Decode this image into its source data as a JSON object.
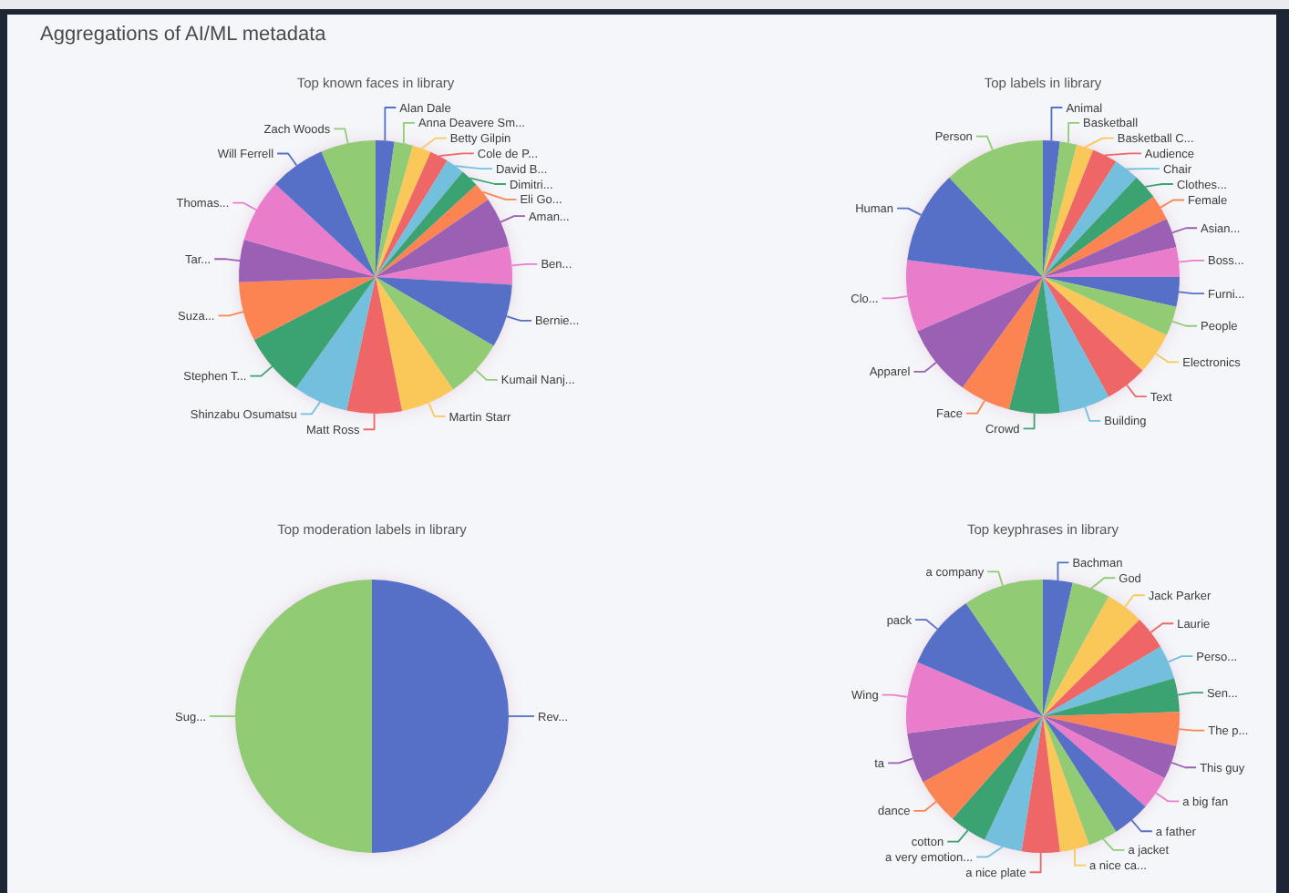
{
  "chart_data": [
    {
      "type": "other",
      "title": "Aggregations of AI/ML metadata"
    },
    {
      "type": "pie",
      "title": "Top known faces in library",
      "categories": [
        "Alan Dale",
        "Anna Deavere Sm...",
        "Betty Gilpin",
        "Cole de P...",
        "David B...",
        "Dimitri...",
        "Eli Go...",
        "Aman...",
        "Ben...",
        "Bernie...",
        "Kumail Nanj...",
        "Martin Starr",
        "Matt Ross",
        "Shinzabu Osumatsu",
        "Stephen T...",
        "Suza...",
        "Tar...",
        "Thomas...",
        "Will Ferrell",
        "Zach Woods"
      ],
      "values": [
        2.2,
        2.2,
        2.2,
        2.2,
        2.2,
        2.2,
        2.2,
        6,
        4.5,
        7.5,
        7,
        6.5,
        6.5,
        6.5,
        7.5,
        7,
        5,
        7.5,
        6.6,
        6.5
      ],
      "colors": [
        "#5470c6",
        "#91cc75",
        "#fac858",
        "#ee6666",
        "#73c0de",
        "#3ba272",
        "#fc8452",
        "#9a60b4",
        "#ea7ccc",
        "#5470c6",
        "#91cc75",
        "#fac858",
        "#ee6666",
        "#73c0de",
        "#3ba272",
        "#fc8452",
        "#9a60b4",
        "#ea7ccc",
        "#5470c6",
        "#91cc75"
      ]
    },
    {
      "type": "pie",
      "title": "Top labels in library",
      "categories": [
        "Animal",
        "Basketball",
        "Basketball C...",
        "Audience",
        "Chair",
        "Clothes...",
        "Female",
        "Asian...",
        "Boss...",
        "Furni...",
        "People",
        "Electronics",
        "Text",
        "Building",
        "Crowd",
        "Face",
        "Apparel",
        "Clo...",
        "Human",
        "Person"
      ],
      "values": [
        2,
        2,
        2,
        3,
        3,
        3,
        3,
        3.5,
        3.5,
        3.5,
        3.5,
        5,
        5,
        6,
        6,
        6,
        8.5,
        8.5,
        11,
        12
      ],
      "colors": [
        "#5470c6",
        "#91cc75",
        "#fac858",
        "#ee6666",
        "#73c0de",
        "#3ba272",
        "#fc8452",
        "#9a60b4",
        "#ea7ccc",
        "#5470c6",
        "#91cc75",
        "#fac858",
        "#ee6666",
        "#73c0de",
        "#3ba272",
        "#fc8452",
        "#9a60b4",
        "#ea7ccc",
        "#5470c6",
        "#91cc75"
      ]
    },
    {
      "type": "pie",
      "title": "Top moderation labels in library",
      "categories": [
        "Rev...",
        "Sug..."
      ],
      "values": [
        50,
        50
      ],
      "colors": [
        "#5470c6",
        "#91cc75"
      ]
    },
    {
      "type": "pie",
      "title": "Top keyphrases in library",
      "categories": [
        "Bachman",
        "God",
        "Jack Parker",
        "Laurie",
        "Perso...",
        "Sen...",
        "The p...",
        "This guy",
        "a big fan",
        "a father",
        "a jacket",
        "a nice ca...",
        "a nice plate",
        "a very emotion...",
        "cotton",
        "dance",
        "ta",
        "Wing",
        "pack",
        "a company"
      ],
      "values": [
        3.5,
        4.5,
        4.5,
        4,
        4,
        4,
        4,
        4,
        4,
        4.5,
        3.5,
        3.5,
        4.5,
        4.5,
        4.5,
        5.5,
        6,
        8.5,
        9,
        9.5
      ],
      "colors": [
        "#5470c6",
        "#91cc75",
        "#fac858",
        "#ee6666",
        "#73c0de",
        "#3ba272",
        "#fc8452",
        "#9a60b4",
        "#ea7ccc",
        "#5470c6",
        "#91cc75",
        "#fac858",
        "#ee6666",
        "#73c0de",
        "#3ba272",
        "#fc8452",
        "#9a60b4",
        "#ea7ccc",
        "#5470c6",
        "#91cc75"
      ]
    }
  ]
}
